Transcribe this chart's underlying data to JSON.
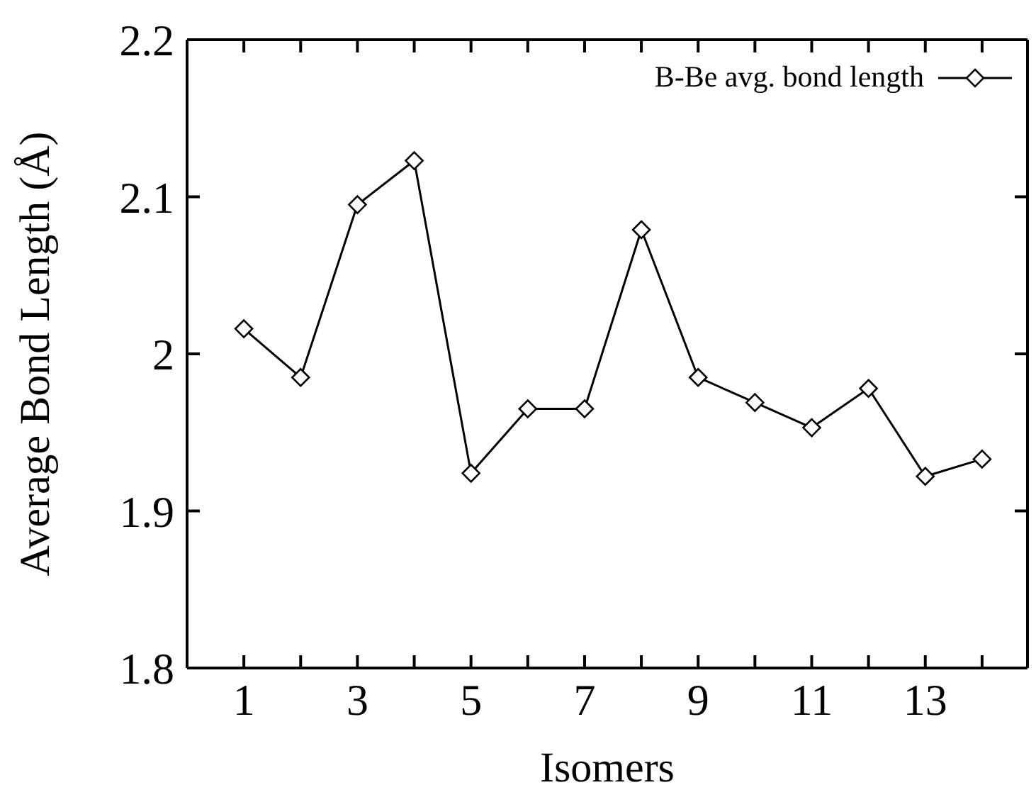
{
  "chart_data": {
    "type": "line",
    "xlabel": "Isomers",
    "ylabel": "Average Bond Length (Å)",
    "x": [
      1,
      2,
      3,
      4,
      5,
      6,
      7,
      8,
      9,
      10,
      11,
      12,
      13,
      14
    ],
    "series": [
      {
        "name": "B-Be avg. bond length",
        "color": "#000000",
        "values": [
          2.016,
          1.985,
          2.095,
          2.123,
          1.924,
          1.965,
          1.965,
          2.079,
          1.985,
          1.969,
          1.953,
          1.978,
          1.922,
          1.933
        ]
      }
    ],
    "xlim": [
      0,
      14.8
    ],
    "xticks": [
      1,
      {
        "value": 2,
        "label": null
      },
      3,
      {
        "value": 4,
        "label": null
      },
      5,
      {
        "value": 6,
        "label": null
      },
      7,
      {
        "value": 8,
        "label": null
      },
      9,
      {
        "value": 10,
        "label": null
      },
      11,
      {
        "value": 12,
        "label": null
      },
      13,
      {
        "value": 14,
        "label": null
      }
    ],
    "ylim": [
      1.8,
      2.2
    ],
    "yticks": [
      1.8,
      1.9,
      2,
      2.1,
      2.2
    ],
    "grid": false,
    "legend": "top right",
    "marker": "diamond",
    "line_style": "solid"
  }
}
